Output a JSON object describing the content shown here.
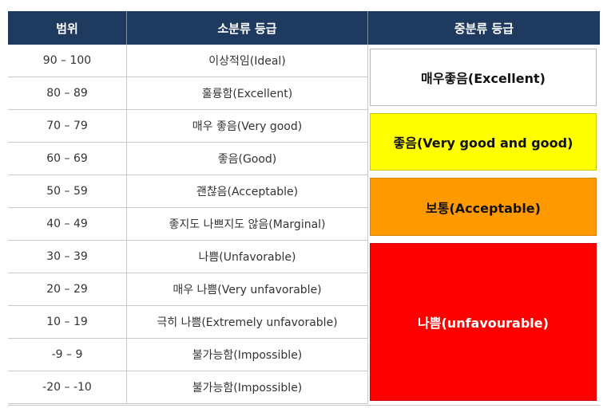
{
  "header": {
    "col_range": "범위",
    "col_sub": "소분류 등급",
    "col_mid": "중분류 등급"
  },
  "rows": [
    {
      "range": "90 – 100",
      "sub": "이상적임(Ideal)"
    },
    {
      "range": "80 – 89",
      "sub": "훌륭함(Excellent)"
    },
    {
      "range": "70 – 79",
      "sub": "매우 좋음(Very good)"
    },
    {
      "range": "60 – 69",
      "sub": "좋음(Good)"
    },
    {
      "range": "50 – 59",
      "sub": "괜찮음(Acceptable)"
    },
    {
      "range": "40 – 49",
      "sub": "좋지도 나쁘지도 않음(Marginal)"
    },
    {
      "range": "30 – 39",
      "sub": "나쁨(Unfavorable)"
    },
    {
      "range": "20 – 29",
      "sub": "매우 나쁨(Very unfavorable)"
    },
    {
      "range": "10 – 19",
      "sub": "극히 나쁨(Extremely unfavorable)"
    },
    {
      "range": "-9 – 9",
      "sub": "불가능함(Impossible)"
    },
    {
      "range": "-20 – -10",
      "sub": "불가능함(Impossible)"
    }
  ],
  "grades": {
    "excellent": {
      "label": "매우좋음(Excellent)",
      "color": "#ffffff"
    },
    "good": {
      "label": "좋음(Very good and good)",
      "color": "#ffff00"
    },
    "acceptable": {
      "label": "보통(Acceptable)",
      "color": "#ff9900"
    },
    "bad": {
      "label": "나쁨(unfavourable)",
      "color": "#ff0000"
    }
  },
  "colors": {
    "header_bg": "#1f3a5f",
    "header_text": "#ffffff"
  }
}
